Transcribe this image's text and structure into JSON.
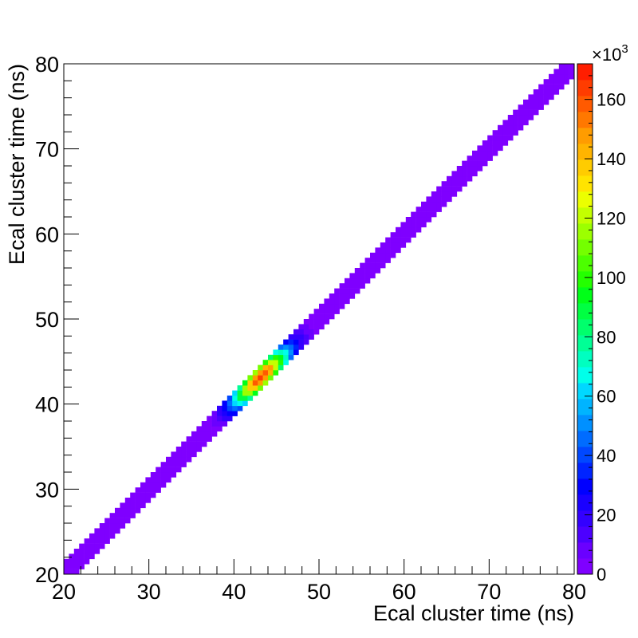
{
  "chart_data": {
    "type": "heatmap",
    "title": "",
    "xlabel": "Ecal cluster time (ns)",
    "ylabel": "Ecal cluster time (ns)",
    "xlim": [
      20,
      80
    ],
    "ylim": [
      20,
      80
    ],
    "x_ticks": [
      "20",
      "30",
      "40",
      "50",
      "60",
      "70",
      "80"
    ],
    "y_ticks": [
      "20",
      "30",
      "40",
      "50",
      "60",
      "70",
      "80"
    ],
    "band": {
      "from": [
        20,
        20
      ],
      "to": [
        80,
        80
      ],
      "half_width_ns": 1.6
    },
    "peak": {
      "x": 43.2,
      "y": 43.2,
      "value": 165000,
      "sigma_along_ns": 2.2,
      "sigma_across_ns": 0.7
    },
    "colorbar": {
      "min": 0,
      "max": 172000,
      "multiplier_label": "×10",
      "multiplier_exponent": "3",
      "tick_values": [
        0,
        20000,
        40000,
        60000,
        80000,
        100000,
        120000,
        140000,
        160000
      ],
      "tick_labels": [
        "0",
        "20",
        "40",
        "60",
        "80",
        "100",
        "120",
        "140",
        "160"
      ],
      "palette": [
        "#7f00ff",
        "#6a00ff",
        "#4c00ff",
        "#3300ff",
        "#1a00ff",
        "#0000ff",
        "#0024ff",
        "#0048ff",
        "#006cff",
        "#0090ff",
        "#00b4ff",
        "#00d8ff",
        "#00ffea",
        "#00ffc0",
        "#00ff96",
        "#00ff6c",
        "#00ff42",
        "#00ff18",
        "#24ff00",
        "#4cff00",
        "#74ff00",
        "#9cff00",
        "#c4ff00",
        "#ecff00",
        "#ffe400",
        "#ffcc00",
        "#ffb400",
        "#ff9c00",
        "#ff7800",
        "#ff5a00",
        "#ff3c00",
        "#ff1e00"
      ]
    }
  }
}
